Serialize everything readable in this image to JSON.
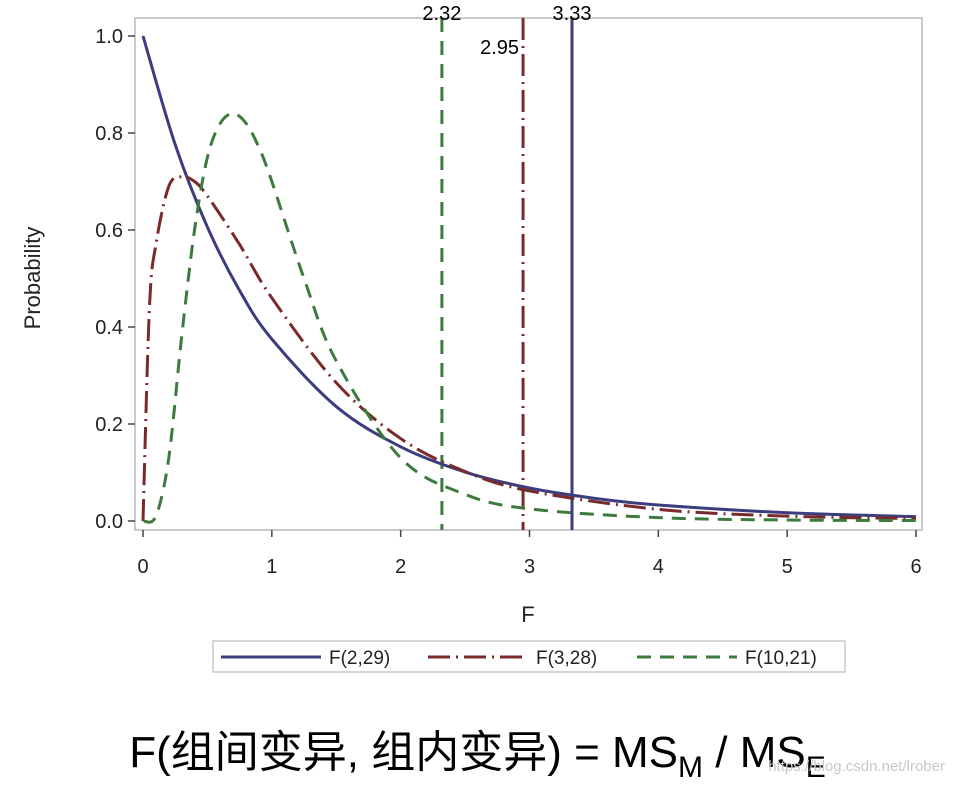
{
  "chart_data": {
    "type": "line",
    "xlabel": "F",
    "ylabel": "Probability",
    "xlim": [
      0,
      6.05
    ],
    "ylim": [
      0,
      1.0
    ],
    "x_ticks": [
      "0",
      "1",
      "2",
      "3",
      "4",
      "5",
      "6"
    ],
    "y_ticks": [
      "0.0",
      "0.2",
      "0.4",
      "0.6",
      "0.8",
      "1.0"
    ],
    "grid": false,
    "legend_position": "bottom",
    "series": [
      {
        "name": "F(2,29)",
        "color": "#3b3d7e",
        "style": "solid",
        "x": [
          0,
          0.25,
          0.5,
          0.75,
          1,
          1.5,
          2,
          2.5,
          3,
          3.5,
          4,
          5,
          6
        ],
        "y": [
          1.0,
          0.776,
          0.606,
          0.475,
          0.375,
          0.236,
          0.153,
          0.101,
          0.068,
          0.047,
          0.033,
          0.017,
          0.009
        ]
      },
      {
        "name": "F(3,28)",
        "color": "#7a2a2a",
        "style": "dash-dot",
        "x": [
          0,
          0.05,
          0.1,
          0.2,
          0.3,
          0.4,
          0.5,
          0.75,
          1,
          1.5,
          2,
          2.5,
          3,
          4,
          5,
          6
        ],
        "y": [
          0,
          0.44,
          0.57,
          0.69,
          0.71,
          0.7,
          0.67,
          0.57,
          0.46,
          0.285,
          0.17,
          0.102,
          0.062,
          0.024,
          0.01,
          0.005
        ]
      },
      {
        "name": "F(10,21)",
        "color": "#3d7a3d",
        "style": "dashed",
        "x": [
          0,
          0.1,
          0.2,
          0.3,
          0.4,
          0.5,
          0.6,
          0.7,
          0.8,
          0.9,
          1,
          1.25,
          1.5,
          2,
          2.5,
          3,
          4,
          5,
          6
        ],
        "y": [
          0,
          0.01,
          0.13,
          0.38,
          0.6,
          0.75,
          0.82,
          0.84,
          0.82,
          0.77,
          0.7,
          0.5,
          0.33,
          0.13,
          0.055,
          0.025,
          0.007,
          0.002,
          0.001
        ]
      }
    ],
    "reference_lines": [
      {
        "x": 2.32,
        "label": "2.32",
        "color": "#3d7a3d",
        "style": "dashed"
      },
      {
        "x": 2.95,
        "label": "2.95",
        "color": "#7a2a2a",
        "style": "dash-dot"
      },
      {
        "x": 3.33,
        "label": "3.33",
        "color": "#3b3d7e",
        "style": "solid"
      }
    ]
  },
  "caption": {
    "prefix": "F(组间变异, 组内变异) = MS",
    "sub1": "M",
    "middle": " / MS",
    "sub2": "E"
  },
  "watermark": "https://blog.csdn.net/lrober"
}
